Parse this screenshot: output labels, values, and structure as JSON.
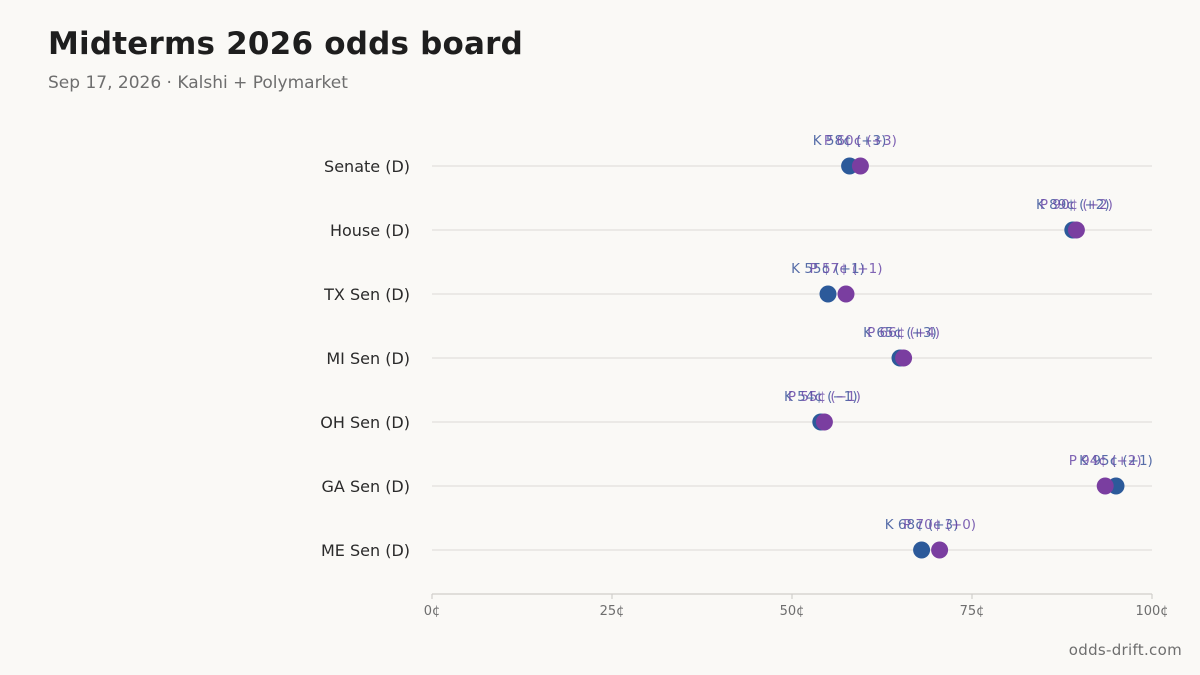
{
  "header": {
    "title": "Midterms 2026 odds board",
    "subtitle": "Sep 17, 2026 · Kalshi + Polymarket"
  },
  "footer": {
    "source": "odds-drift.com"
  },
  "colors": {
    "kalshi": "#2c5a9a",
    "polymarket": "#7a3ea0",
    "kalshi_label": "#3a559a",
    "polymarket_label": "#6a4aa8",
    "grid": "#e2e0dc",
    "axis": "#d0ceca"
  },
  "chart_data": {
    "type": "scatter",
    "subtype": "dot-plot",
    "categories": [
      "Senate (D)",
      "House (D)",
      "TX Sen (D)",
      "MI Sen (D)",
      "OH Sen (D)",
      "GA Sen (D)",
      "ME Sen (D)"
    ],
    "xlim": [
      0,
      100
    ],
    "x_ticks": [
      0,
      25,
      50,
      75,
      100
    ],
    "x_tick_labels": [
      "0¢",
      "25¢",
      "50¢",
      "75¢",
      "100¢"
    ],
    "grid": true,
    "series": [
      {
        "name": "K",
        "values": [
          58,
          89,
          55,
          65,
          54,
          95,
          68
        ],
        "labels": [
          "K 58¢ (+3)",
          "K 89¢ (+2)",
          "K 55¢ (+1)",
          "K 65¢ (+3)",
          "K 54¢ (−1)",
          "K 95¢ (+1)",
          "K 68¢ (+3)"
        ]
      },
      {
        "name": "P",
        "values": [
          59.5,
          89.5,
          57.5,
          65.5,
          54.5,
          93.5,
          70.5
        ],
        "labels": [
          "P 60¢ (+3)",
          "P 90¢ (+2)",
          "P 57¢ (+1)",
          "P 66¢ (+4)",
          "P 55¢ (−1)",
          "P 94¢ (+2)",
          "P 70¢ (+0)"
        ]
      }
    ]
  }
}
